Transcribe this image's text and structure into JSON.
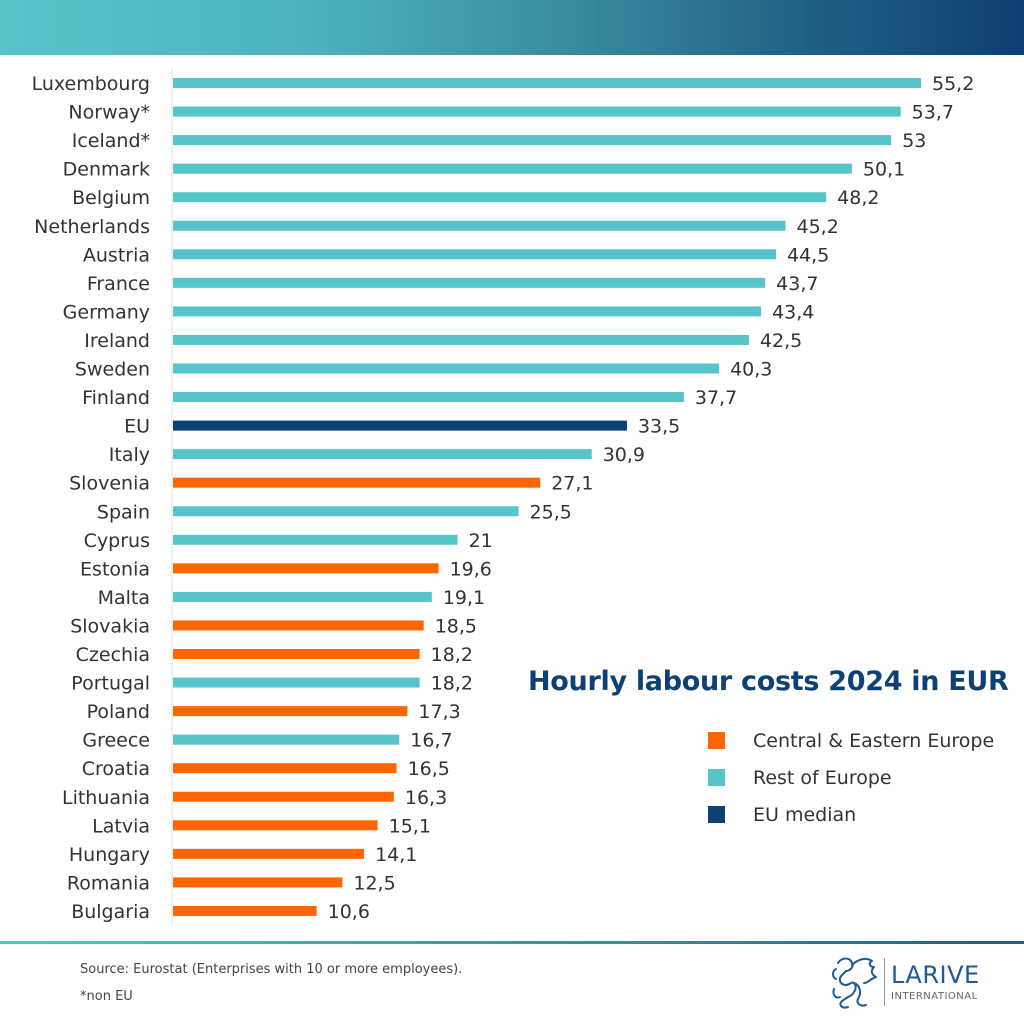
{
  "header": {
    "band": "gradient",
    "colors": [
      "#55c4cb",
      "#0d4071"
    ]
  },
  "chart_data": {
    "type": "bar",
    "orientation": "horizontal",
    "title": "Hourly labour costs 2024 in EUR",
    "xlabel": "",
    "ylabel": "",
    "xlim": [
      0,
      56
    ],
    "grid": false,
    "legend_position": "bottom-right",
    "categories": [
      "Luxembourg",
      "Norway*",
      "Iceland*",
      "Denmark",
      "Belgium",
      "Netherlands",
      "Austria",
      "France",
      "Germany",
      "Ireland",
      "Sweden",
      "Finland",
      "EU",
      "Italy",
      "Slovenia",
      "Spain",
      "Cyprus",
      "Estonia",
      "Malta",
      "Slovakia",
      "Czechia",
      "Portugal",
      "Poland",
      "Greece",
      "Croatia",
      "Lithuania",
      "Latvia",
      "Hungary",
      "Romania",
      "Bulgaria"
    ],
    "values": [
      55.2,
      53.7,
      53,
      50.1,
      48.2,
      45.2,
      44.5,
      43.7,
      43.4,
      42.5,
      40.3,
      37.7,
      33.5,
      30.9,
      27.1,
      25.5,
      21,
      19.6,
      19.1,
      18.5,
      18.2,
      18.2,
      17.3,
      16.7,
      16.5,
      16.3,
      15.1,
      14.1,
      12.5,
      10.6
    ],
    "value_labels": [
      "55,2",
      "53,7",
      "53",
      "50,1",
      "48,2",
      "45,2",
      "44,5",
      "43,7",
      "43,4",
      "42,5",
      "40,3",
      "37,7",
      "33,5",
      "30,9",
      "27,1",
      "25,5",
      "21",
      "19,6",
      "19,1",
      "18,5",
      "18,2",
      "18,2",
      "17,3",
      "16,7",
      "16,5",
      "16,3",
      "15,1",
      "14,1",
      "12,5",
      "10,6"
    ],
    "groups": [
      "rest",
      "rest",
      "rest",
      "rest",
      "rest",
      "rest",
      "rest",
      "rest",
      "rest",
      "rest",
      "rest",
      "rest",
      "eu",
      "rest",
      "cee",
      "rest",
      "rest",
      "cee",
      "rest",
      "cee",
      "cee",
      "rest",
      "cee",
      "rest",
      "cee",
      "cee",
      "cee",
      "cee",
      "cee",
      "cee"
    ],
    "legend": [
      {
        "key": "cee",
        "label": "Central & Eastern Europe",
        "color": "#ff6600"
      },
      {
        "key": "rest",
        "label": "Rest of Europe",
        "color": "#55c4cb"
      },
      {
        "key": "eu",
        "label": "EU median",
        "color": "#0d4174"
      }
    ]
  },
  "footer": {
    "source": "Source: Eurostat (Enterprises with 10 or more employees).",
    "note": "*non EU",
    "logo_name": "LARIVE",
    "logo_sub": "INTERNATIONAL"
  }
}
